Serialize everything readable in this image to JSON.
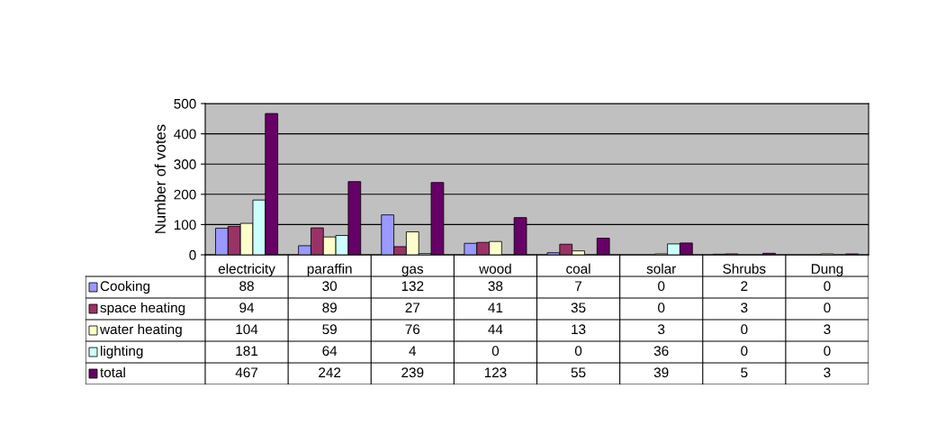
{
  "chart_data": {
    "type": "bar",
    "ylabel": "Number of votes",
    "categories": [
      "electricity",
      "paraffin",
      "gas",
      "wood",
      "coal",
      "solar",
      "Shrubs",
      "Dung"
    ],
    "series": [
      {
        "name": "Cooking",
        "color": "#9999ff",
        "values": [
          88,
          30,
          132,
          38,
          7,
          0,
          2,
          0
        ]
      },
      {
        "name": "space heating",
        "color": "#993366",
        "values": [
          94,
          89,
          27,
          41,
          35,
          0,
          3,
          0
        ]
      },
      {
        "name": "water heating",
        "color": "#ffffcc",
        "values": [
          104,
          59,
          76,
          44,
          13,
          3,
          0,
          3
        ]
      },
      {
        "name": "lighting",
        "color": "#ccffff",
        "values": [
          181,
          64,
          4,
          0,
          0,
          36,
          0,
          0
        ]
      },
      {
        "name": "total",
        "color": "#660066",
        "values": [
          467,
          242,
          239,
          123,
          55,
          39,
          5,
          3
        ]
      }
    ],
    "ylim": [
      0,
      500
    ],
    "yticks": [
      0,
      100,
      200,
      300,
      400,
      500
    ],
    "grid": "y",
    "data_labels": true,
    "legend": "bottom left"
  }
}
